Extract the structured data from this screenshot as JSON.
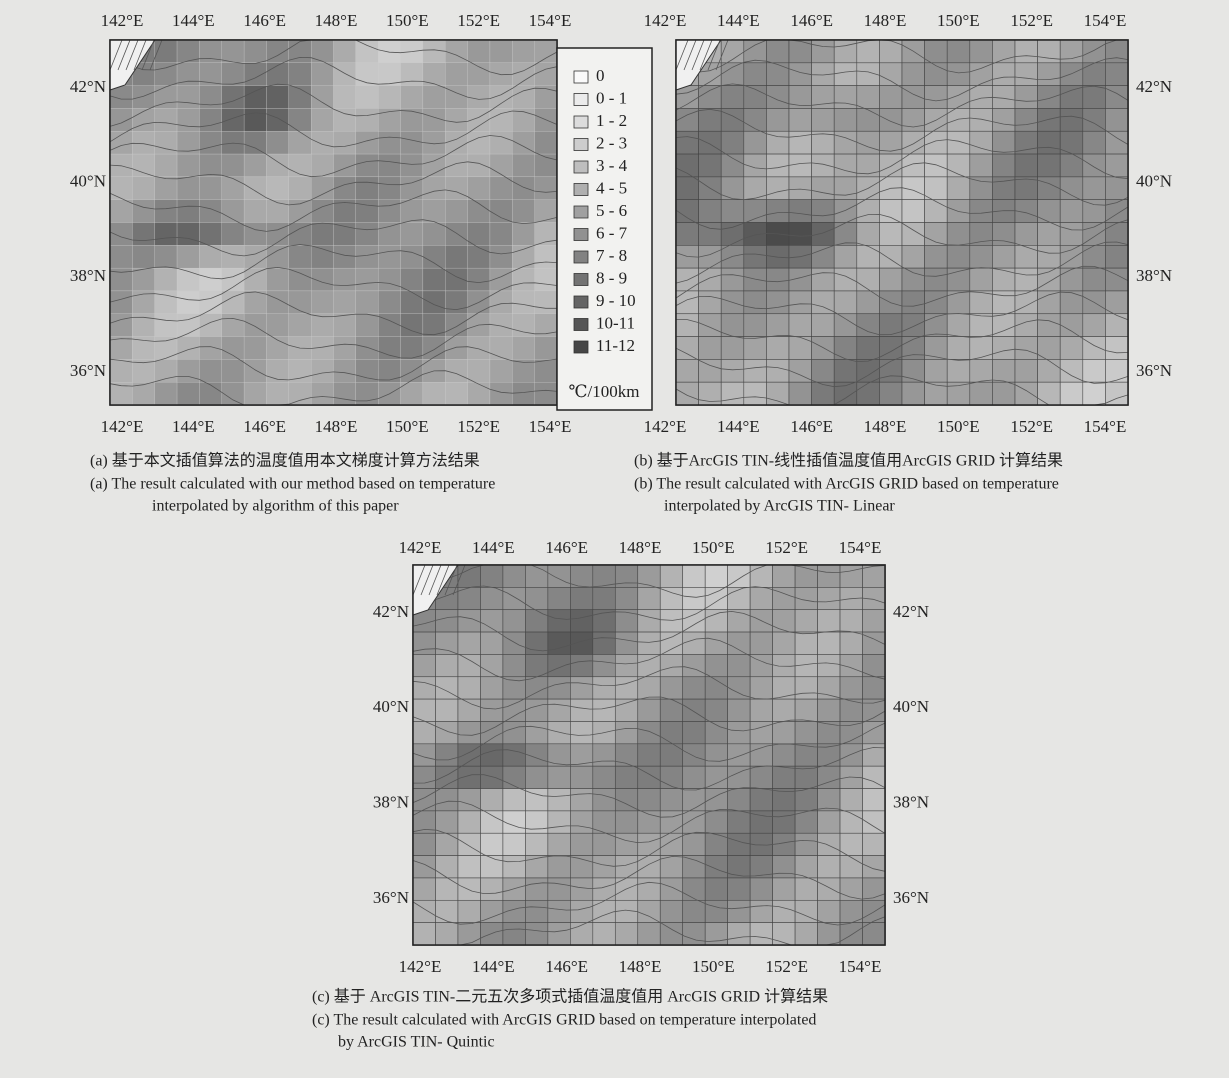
{
  "panels": [
    {
      "lon_labels": [
        "142°E",
        "144°E",
        "146°E",
        "148°E",
        "150°E",
        "152°E",
        "154°E"
      ],
      "lat_labels": [
        "42°N",
        "40°N",
        "38°N",
        "36°N"
      ],
      "caption_cn": "(a) 基于本文插值算法的温度值用本文梯度计算方法结果",
      "caption_en": [
        "(a) The result calculated with our method based on temperature",
        "interpolated by algorithm of this paper"
      ]
    },
    {
      "lon_labels": [
        "142°E",
        "144°E",
        "146°E",
        "148°E",
        "150°E",
        "152°E",
        "154°E"
      ],
      "lat_labels": [
        "42°N",
        "40°N",
        "38°N",
        "36°N"
      ],
      "caption_cn": "(b) 基于ArcGIS TIN-线性插值温度值用ArcGIS GRID 计算结果",
      "caption_en": [
        "(b) The result calculated with ArcGIS GRID based on temperature",
        "interpolated by ArcGIS TIN- Linear"
      ]
    },
    {
      "lon_labels": [
        "142°E",
        "144°E",
        "146°E",
        "148°E",
        "150°E",
        "152°E",
        "154°E"
      ],
      "lat_labels": [
        "42°N",
        "40°N",
        "38°N",
        "36°N"
      ],
      "caption_cn": "(c) 基于 ArcGIS TIN-二元五次多项式插值温度值用 ArcGIS GRID 计算结果",
      "caption_en": [
        "(c) The result calculated with ArcGIS GRID based on temperature interpolated",
        "by ArcGIS TIN- Quintic"
      ]
    }
  ],
  "legend": {
    "items": [
      "0",
      "0 - 1",
      "1 - 2",
      "2 - 3",
      "3 - 4",
      "4 - 5",
      "5 - 6",
      "6 - 7",
      "7 - 8",
      "8 - 9",
      "9 - 10",
      "10-11",
      "11-12"
    ],
    "unit": "℃/100km"
  }
}
